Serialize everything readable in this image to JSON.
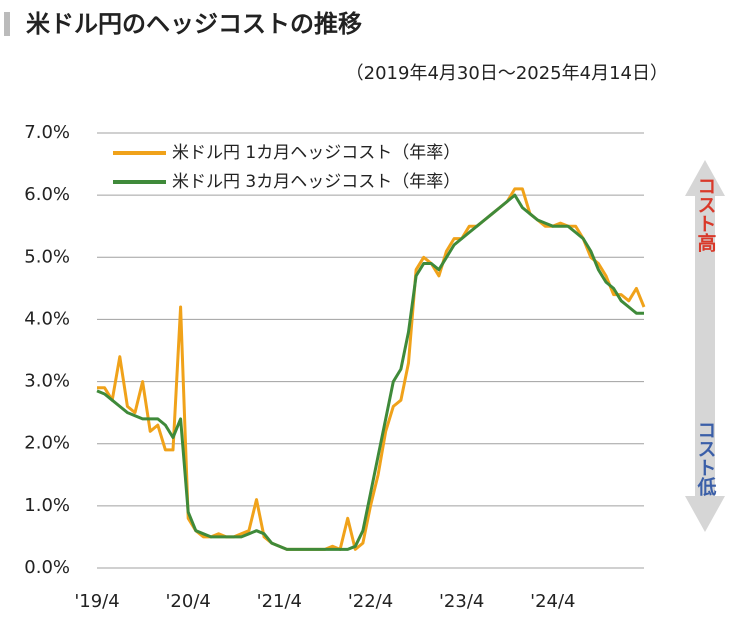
{
  "chart_data": {
    "type": "line",
    "title": "米ドル円のヘッジコストの推移",
    "subtitle": "（2019年4月30日～2025年4月14日）",
    "annotations": [
      "コスト高",
      "コスト低"
    ],
    "categories": [
      "'19/4",
      null,
      null,
      null,
      null,
      null,
      null,
      null,
      null,
      null,
      null,
      null,
      "'20/4",
      null,
      null,
      null,
      null,
      null,
      null,
      null,
      null,
      null,
      null,
      null,
      "'21/4",
      null,
      null,
      null,
      null,
      null,
      null,
      null,
      null,
      null,
      null,
      null,
      "'22/4",
      null,
      null,
      null,
      null,
      null,
      null,
      null,
      null,
      null,
      null,
      null,
      "'23/4",
      null,
      null,
      null,
      null,
      null,
      null,
      null,
      null,
      null,
      null,
      null,
      "'24/4",
      null,
      null,
      null,
      null,
      null,
      null,
      null,
      null,
      null,
      null,
      null,
      null
    ],
    "series": [
      {
        "name": "米ドル円 1カ月ヘッジコスト（年率）",
        "color": "#f0a21a",
        "values": [
          2.9,
          2.9,
          2.7,
          3.4,
          2.6,
          2.5,
          3.0,
          2.2,
          2.3,
          1.9,
          1.9,
          4.2,
          0.8,
          0.6,
          0.5,
          0.5,
          0.55,
          0.5,
          0.5,
          0.55,
          0.6,
          1.1,
          0.5,
          0.4,
          0.35,
          0.3,
          0.3,
          0.3,
          0.3,
          0.3,
          0.3,
          0.35,
          0.3,
          0.8,
          0.3,
          0.4,
          1.0,
          1.5,
          2.2,
          2.6,
          2.7,
          3.3,
          4.8,
          5.0,
          4.9,
          4.7,
          5.1,
          5.3,
          5.3,
          5.5,
          5.5,
          5.6,
          5.7,
          5.8,
          5.9,
          6.1,
          6.1,
          5.7,
          5.6,
          5.5,
          5.5,
          5.55,
          5.5,
          5.5,
          5.3,
          5.0,
          4.9,
          4.7,
          4.4,
          4.4,
          4.3,
          4.5,
          4.2
        ]
      },
      {
        "name": "米ドル円 3カ月ヘッジコスト（年率）",
        "color": "#3f8a3a",
        "values": [
          2.85,
          2.8,
          2.7,
          2.6,
          2.5,
          2.45,
          2.4,
          2.4,
          2.4,
          2.3,
          2.1,
          2.4,
          0.9,
          0.6,
          0.55,
          0.5,
          0.5,
          0.5,
          0.5,
          0.5,
          0.55,
          0.6,
          0.55,
          0.4,
          0.35,
          0.3,
          0.3,
          0.3,
          0.3,
          0.3,
          0.3,
          0.3,
          0.3,
          0.3,
          0.35,
          0.6,
          1.2,
          1.8,
          2.4,
          3.0,
          3.2,
          3.8,
          4.7,
          4.9,
          4.9,
          4.8,
          5.0,
          5.2,
          5.3,
          5.4,
          5.5,
          5.6,
          5.7,
          5.8,
          5.9,
          6.0,
          5.8,
          5.7,
          5.6,
          5.55,
          5.5,
          5.5,
          5.5,
          5.4,
          5.3,
          5.1,
          4.8,
          4.6,
          4.5,
          4.3,
          4.2,
          4.1,
          4.1
        ]
      }
    ],
    "ylim": [
      0,
      7
    ],
    "yticks": [
      {
        "value": 0,
        "label": "0.0%"
      },
      {
        "value": 1,
        "label": "1.0%"
      },
      {
        "value": 2,
        "label": "2.0%"
      },
      {
        "value": 3,
        "label": "3.0%"
      },
      {
        "value": 4,
        "label": "4.0%"
      },
      {
        "value": 5,
        "label": "5.0%"
      },
      {
        "value": 6,
        "label": "6.0%"
      },
      {
        "value": 7,
        "label": "7.0%"
      }
    ],
    "grid": true,
    "legend": "upper left"
  }
}
